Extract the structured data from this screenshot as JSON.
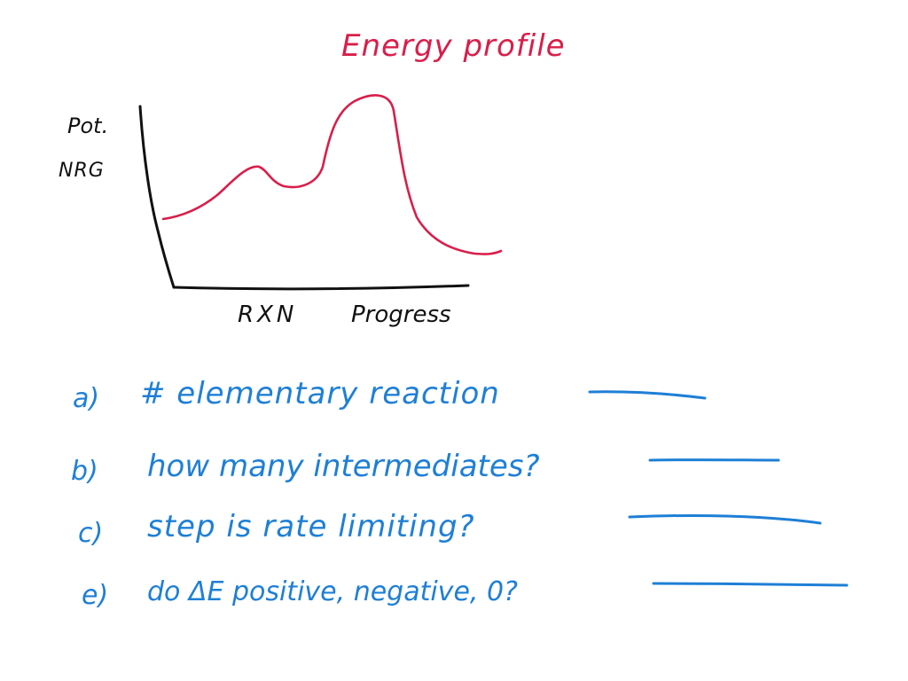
{
  "title": "Energy profile",
  "y_axis_label": [
    "Pot.",
    "NRG"
  ],
  "x_axis_label": [
    "RXN",
    "Progress"
  ],
  "colors": {
    "curve": "#d91e4a",
    "ink": "#111111",
    "questions": "#1e7fd6",
    "background": "#ffffff"
  },
  "questions": [
    {
      "letter": "a)",
      "text": "# elementary reaction"
    },
    {
      "letter": "b)",
      "text": "how many intermediates?"
    },
    {
      "letter": "c)",
      "text": "step is rate limiting?"
    },
    {
      "letter": "e)",
      "text": "do ΔE positive, negative, 0?"
    }
  ]
}
